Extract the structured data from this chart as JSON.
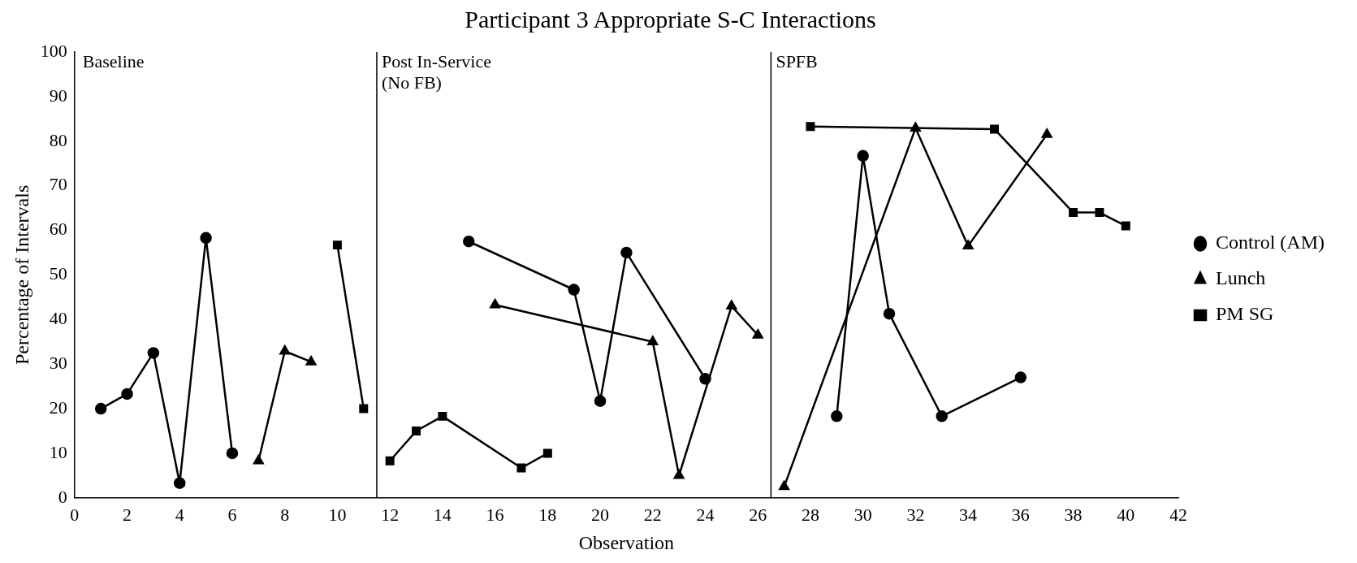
{
  "chart_data": {
    "type": "line",
    "title": "Participant 3 Appropriate S-C Interactions",
    "xlabel": "Observation",
    "ylabel": "Percentage of Intervals",
    "xlim": [
      0,
      42
    ],
    "xticks": [
      0,
      2,
      4,
      6,
      8,
      10,
      12,
      14,
      16,
      18,
      20,
      22,
      24,
      26,
      28,
      30,
      32,
      34,
      36,
      38,
      40,
      42
    ],
    "ylim": [
      0,
      100
    ],
    "yticks": [
      0,
      10,
      20,
      30,
      40,
      50,
      60,
      70,
      80,
      90,
      100
    ],
    "grid": false,
    "legend": "right",
    "line_style": "solid",
    "series": [
      {
        "name": "Control (AM)",
        "color": "#000000",
        "marker": "circle",
        "x": [
          1,
          2,
          3,
          4,
          5,
          6,
          11.5,
          15,
          19,
          20,
          21,
          24,
          26.5,
          29,
          30,
          31,
          33,
          36
        ],
        "values": [
          20,
          23.3,
          32.5,
          3.3,
          58.3,
          10,
          null,
          57.5,
          46.7,
          21.7,
          55,
          26.7,
          null,
          18.3,
          76.7,
          41.3,
          18.3,
          27
        ]
      },
      {
        "name": "Lunch",
        "color": "#000000",
        "marker": "triangle",
        "x": [
          7,
          8,
          9,
          11.5,
          16,
          22,
          23,
          25,
          26,
          26.5,
          27,
          32,
          34,
          37
        ],
        "values": [
          8.3,
          32.9,
          30.5,
          null,
          43.3,
          35,
          5,
          43,
          36.5,
          null,
          2.5,
          82.9,
          56.5,
          81.5
        ]
      },
      {
        "name": "PM SG",
        "color": "#000000",
        "marker": "square",
        "x": [
          10,
          11,
          11.5,
          12,
          13,
          14,
          17,
          18,
          26.5,
          28,
          35,
          38,
          39,
          40
        ],
        "values": [
          56.7,
          20,
          null,
          8.3,
          15,
          18.3,
          6.7,
          10,
          null,
          83.3,
          82.7,
          64,
          64,
          61
        ]
      }
    ],
    "ref_lines": [
      {
        "axis": "x",
        "value": 11.5,
        "label": "Post In-Service\n(No FB)",
        "color": "#000000"
      },
      {
        "axis": "x",
        "value": 26.5,
        "label": "SPFB",
        "color": "#000000"
      }
    ],
    "annotations": [
      "Baseline"
    ]
  }
}
